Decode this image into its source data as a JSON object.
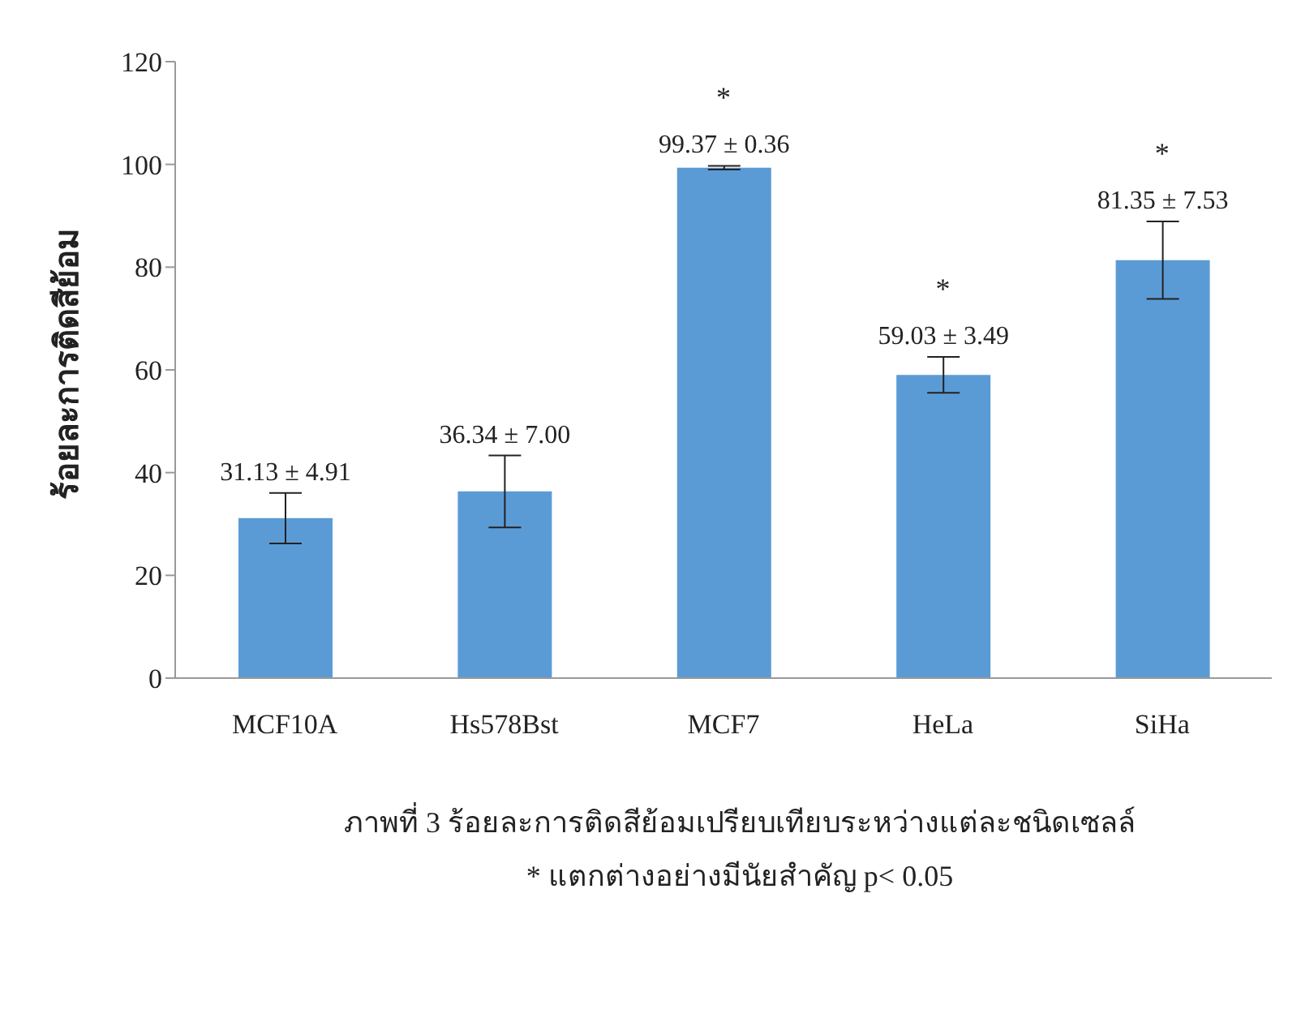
{
  "chart_data": {
    "type": "bar",
    "ylabel": "ร้อยละการติดสีย้อม",
    "categories": [
      "MCF10A",
      "Hs578Bst",
      "MCF7",
      "HeLa",
      "SiHa"
    ],
    "values": [
      31.13,
      36.34,
      99.37,
      59.03,
      81.35
    ],
    "errors": [
      4.91,
      7.0,
      0.36,
      3.49,
      7.53
    ],
    "value_labels": [
      "31.13 ± 4.91",
      "36.34 ± 7.00",
      "99.37 ± 0.36",
      "59.03 ± 3.49",
      "81.35 ± 7.53"
    ],
    "color": "#5b9bd5",
    "ylim": [
      0,
      120
    ],
    "yticks": [
      0,
      20,
      40,
      60,
      80,
      100,
      120
    ],
    "grid": false,
    "legend": false,
    "annotations": [
      {
        "text": "*",
        "x": "MCF7",
        "y": 99.73
      },
      {
        "text": "*",
        "x": "HeLa",
        "y": 62.52
      },
      {
        "text": "*",
        "x": "SiHa",
        "y": 88.88
      },
      "ภาพที่ 3 ร้อยละการติดสีย้อมเปรียบเทียบระหว่างแต่ละชนิดเซลล์",
      "* แตกต่างอย่างมีนัยสำคัญ p< 0.05"
    ]
  }
}
